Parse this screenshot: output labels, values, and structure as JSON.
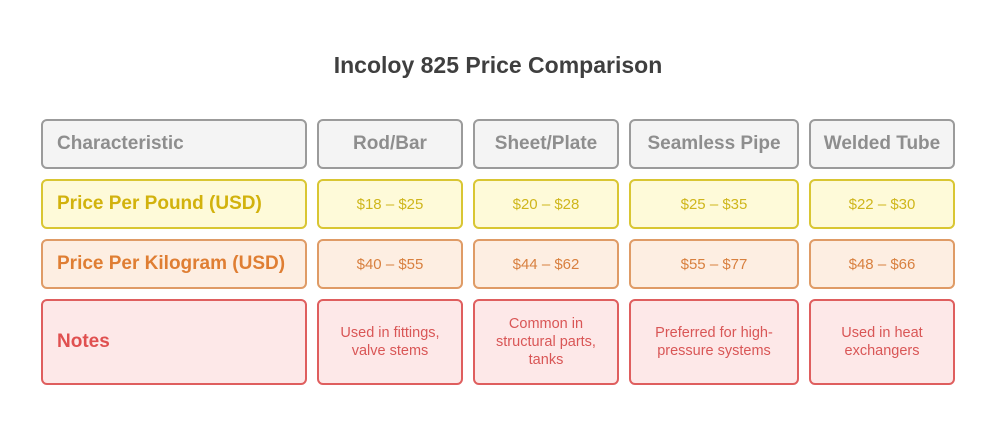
{
  "title": "Incoloy 825 Price Comparison",
  "header": {
    "label": "Characteristic",
    "columns": [
      "Rod/Bar",
      "Sheet/Plate",
      "Seamless Pipe",
      "Welded Tube"
    ]
  },
  "rows": [
    {
      "label": "Price Per Pound (USD)",
      "values": [
        "$18 – $25",
        "$20 – $28",
        "$25 – $35",
        "$22 – $30"
      ]
    },
    {
      "label": "Price Per Kilogram (USD)",
      "values": [
        "$40 – $55",
        "$44 – $62",
        "$55 – $77",
        "$48 – $66"
      ]
    },
    {
      "label": "Notes",
      "values": [
        "Used in fittings, valve stems",
        "Common in structural parts, tanks",
        "Preferred for high-pressure systems",
        "Used in heat exchangers"
      ]
    }
  ],
  "colors": {
    "header": "#9b9b9b",
    "price_per_pound": "#d9c633",
    "price_per_kilogram": "#df9b66",
    "notes": "#df5e5e"
  }
}
